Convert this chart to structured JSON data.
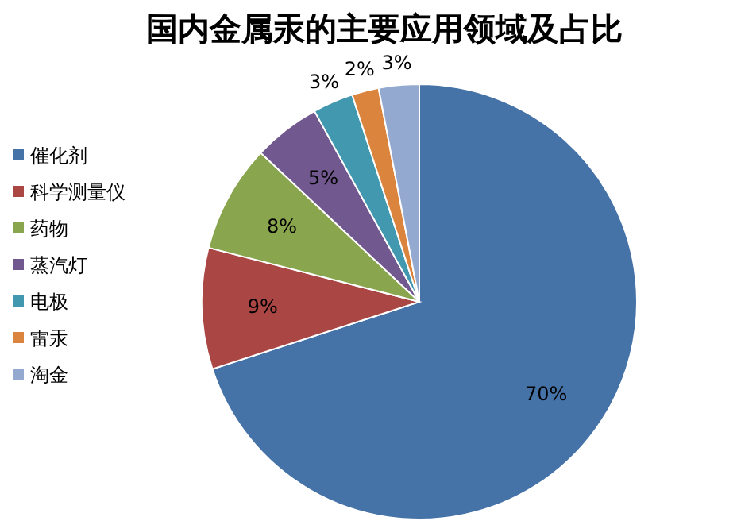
{
  "chart_data": {
    "type": "pie",
    "title": "国内金属汞的主要应用领域及占比",
    "categories": [
      "催化剂",
      "科学测量仪",
      "药物",
      "蒸汽灯",
      "电极",
      "雷汞",
      "淘金"
    ],
    "values": [
      70,
      9,
      8,
      5,
      3,
      2,
      3
    ],
    "value_labels": [
      "70%",
      "9%",
      "8%",
      "5%",
      "3%",
      "2%",
      "3%"
    ],
    "colors": [
      "#4572a7",
      "#aa4643",
      "#89a54e",
      "#71588f",
      "#4198af",
      "#db843d",
      "#93a9cf"
    ],
    "legend": "left"
  }
}
